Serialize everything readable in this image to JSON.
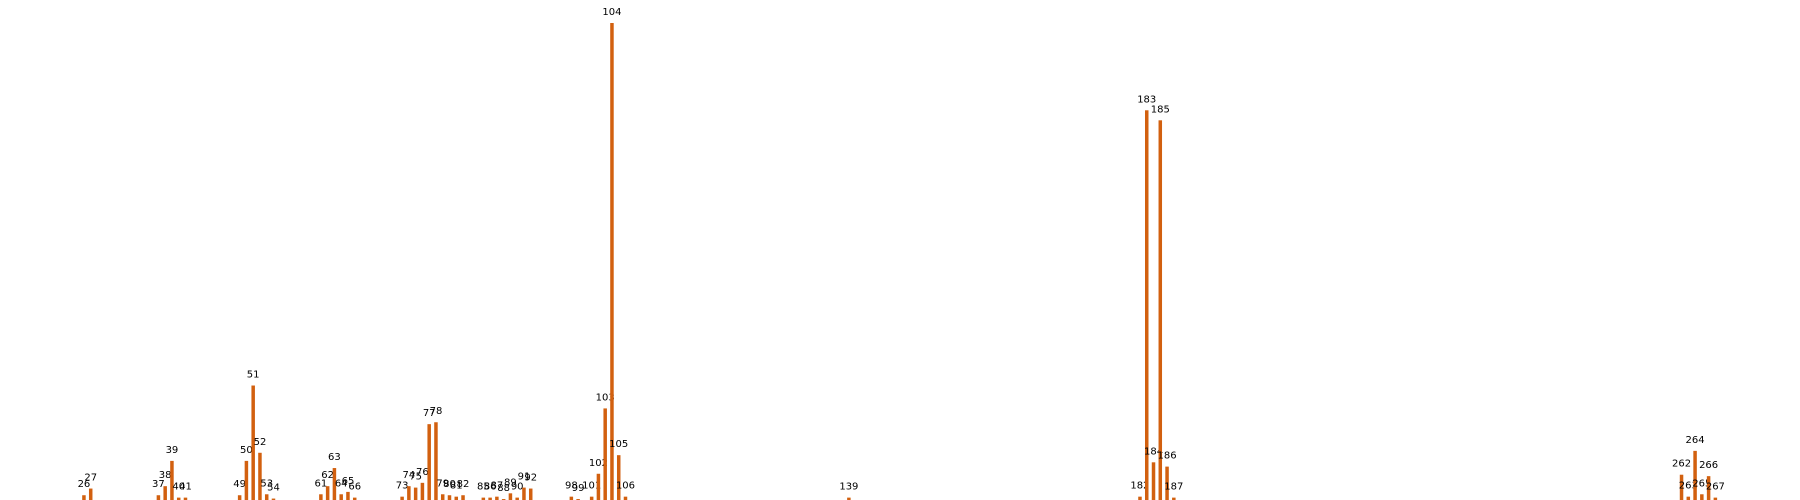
{
  "chart_data": {
    "type": "bar",
    "x": [
      26,
      27,
      37,
      38,
      39,
      40,
      41,
      49,
      50,
      51,
      52,
      53,
      54,
      61,
      62,
      63,
      64,
      65,
      66,
      73,
      74,
      75,
      76,
      77,
      78,
      79,
      80,
      81,
      82,
      85,
      86,
      87,
      88,
      89,
      90,
      91,
      92,
      98,
      99,
      101,
      102,
      103,
      104,
      105,
      106,
      139,
      182,
      183,
      184,
      185,
      186,
      187,
      262,
      263,
      264,
      265,
      266,
      267
    ],
    "values": [
      1,
      2.4,
      1,
      2.9,
      8.2,
      0.5,
      0.5,
      1,
      8.2,
      24,
      9.9,
      1.2,
      0.3,
      1.2,
      2.9,
      6.7,
      1.2,
      1.7,
      0.5,
      0.7,
      2.9,
      2.6,
      3.6,
      15.9,
      16.3,
      1.2,
      1,
      0.7,
      1,
      0.5,
      0.5,
      0.7,
      0.2,
      1.4,
      0.5,
      2.6,
      2.4,
      0.7,
      0.2,
      0.7,
      5.5,
      19.2,
      100,
      9.4,
      0.7,
      0.5,
      0.7,
      81.7,
      7.9,
      79.6,
      7,
      0.5,
      5.3,
      0.7,
      10.3,
      1.2,
      5,
      0.5
    ],
    "color": "#d2600f",
    "xlim": [
      13.6,
      279.5
    ],
    "ylim": [
      0,
      100
    ]
  }
}
